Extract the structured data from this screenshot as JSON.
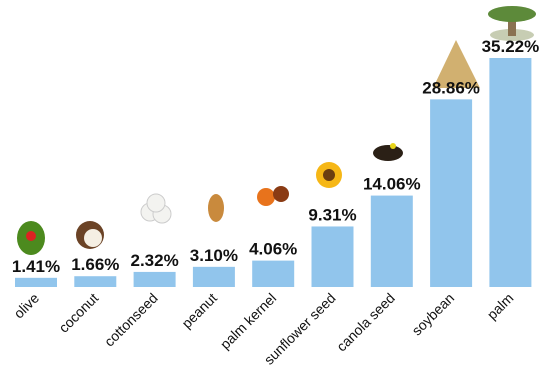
{
  "chart_data": {
    "type": "bar",
    "categories": [
      "olive",
      "coconut",
      "cottonseed",
      "peanut",
      "palm kernel",
      "sunflower seed",
      "canola seed",
      "soybean",
      "palm"
    ],
    "values": [
      1.41,
      1.66,
      2.32,
      3.1,
      4.06,
      9.31,
      14.06,
      28.86,
      35.22
    ],
    "value_labels": [
      "1.41%",
      "1.66%",
      "2.32%",
      "3.10%",
      "4.06%",
      "9.31%",
      "14.06%",
      "28.86%",
      "35.22%"
    ],
    "color": "#91c5ec"
  }
}
